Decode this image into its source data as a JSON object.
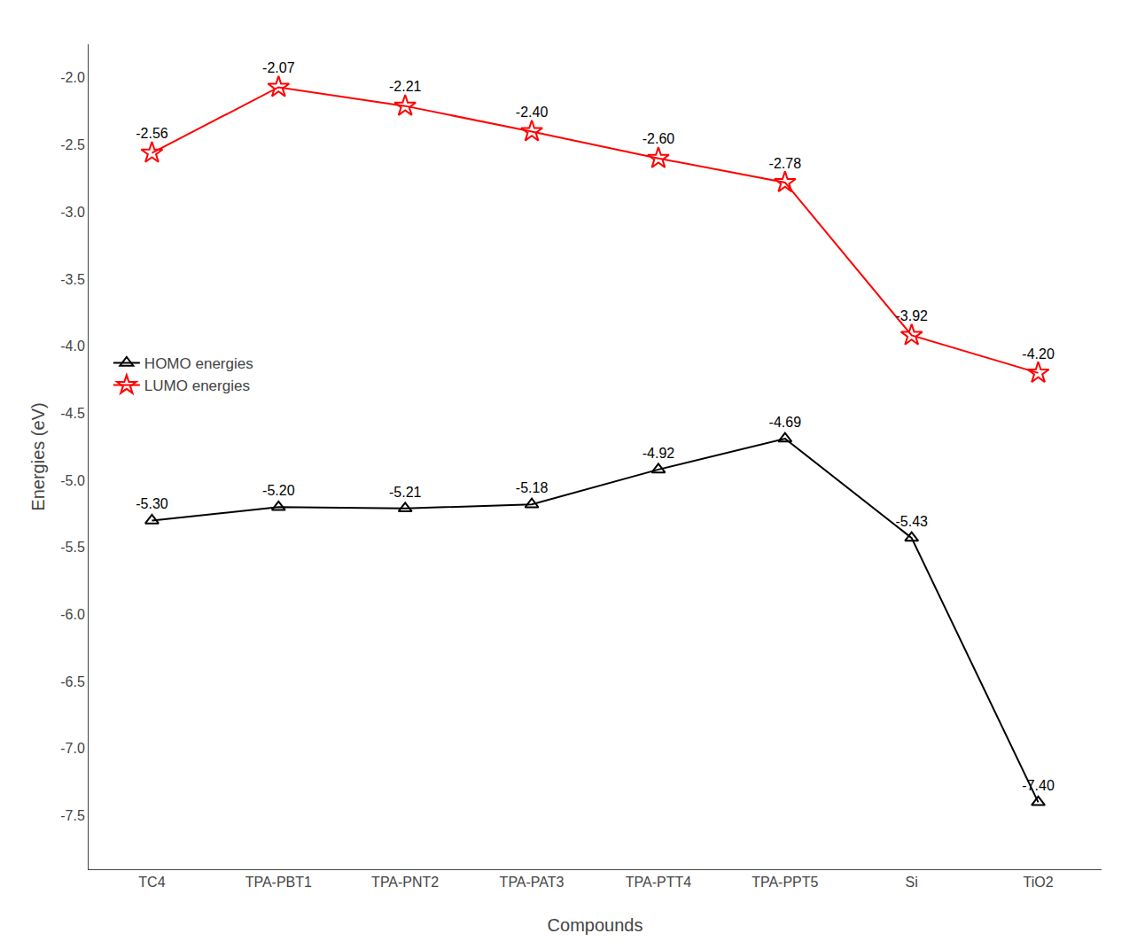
{
  "chart_data": {
    "type": "line",
    "categories": [
      "TC4",
      "TPA-PBT1",
      "TPA-PNT2",
      "TPA-PAT3",
      "TPA-PTT4",
      "TPA-PPT5",
      "Si",
      "TiO2"
    ],
    "series": [
      {
        "name": "HOMO energies",
        "color": "#000000",
        "marker": "triangle-up-open",
        "values": [
          -5.3,
          -5.2,
          -5.21,
          -5.18,
          -4.92,
          -4.69,
          -5.43,
          -7.4
        ],
        "value_labels": [
          "-5.30",
          "-5.20",
          "-5.21",
          "-5.18",
          "-4.92",
          "-4.69",
          "-5.43",
          "-7.40"
        ]
      },
      {
        "name": "LUMO energies",
        "color": "#FF0000",
        "marker": "star-open",
        "values": [
          -2.56,
          -2.07,
          -2.21,
          -2.4,
          -2.6,
          -2.78,
          -3.92,
          -4.2
        ],
        "value_labels": [
          "-2.56",
          "-2.07",
          "-2.21",
          "-2.40",
          "-2.60",
          "-2.78",
          "-3.92",
          "-4.20"
        ]
      }
    ],
    "xlabel": "Compounds",
    "ylabel": "Energies (eV)",
    "ylim": [
      -7.9,
      -1.75
    ],
    "yticks": [
      {
        "value": -2.0,
        "label": "-2.0"
      },
      -2.5,
      {
        "value": -3.0,
        "label": "-3.0"
      },
      -3.5,
      {
        "value": -4.0,
        "label": "-4.0"
      },
      -4.5,
      {
        "value": -5.0,
        "label": "-5.0"
      },
      -5.5,
      {
        "value": -6.0,
        "label": "-6.0"
      },
      -6.5,
      {
        "value": -7.0,
        "label": "-7.0"
      },
      -7.5
    ],
    "legend": "center left",
    "data_labels": true,
    "grid": false
  }
}
